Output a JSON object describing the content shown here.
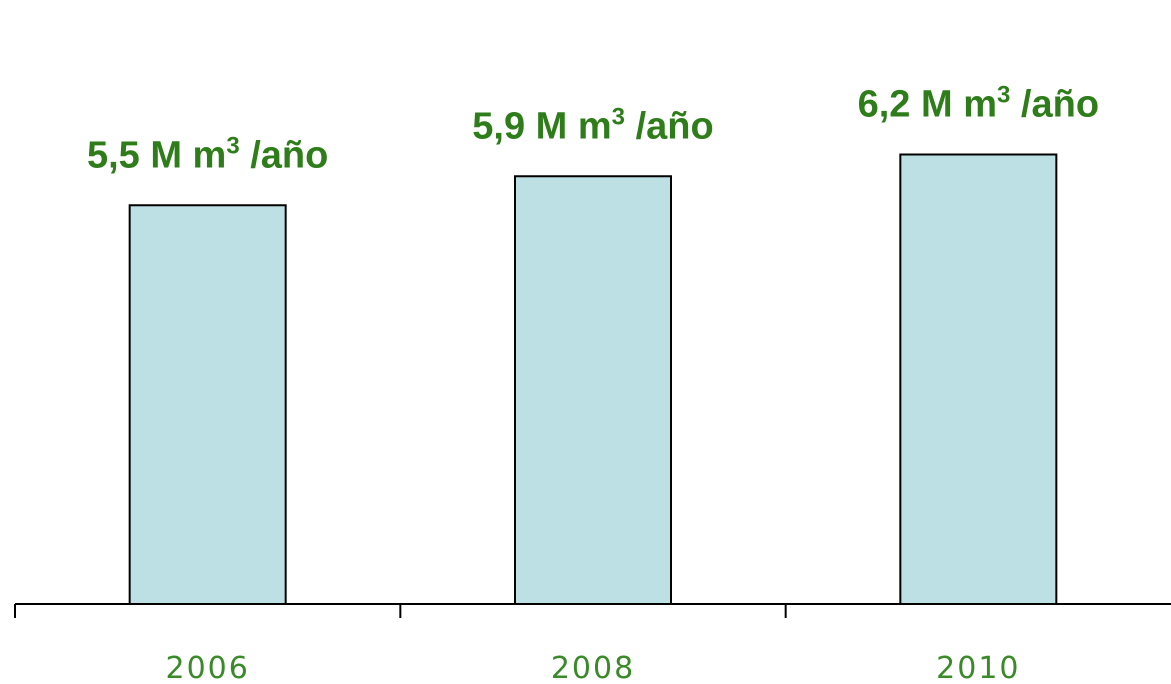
{
  "chart_data": {
    "type": "bar",
    "categories": [
      "2006",
      "2008",
      "2010"
    ],
    "values": [
      5.5,
      5.9,
      6.2
    ],
    "data_labels": [
      {
        "main": "5,5 M m",
        "sup": "3",
        "tail": " /año"
      },
      {
        "main": "5,9 M m",
        "sup": "3",
        "tail": " /año"
      },
      {
        "main": "6,2 M m",
        "sup": "3",
        "tail": " /año"
      }
    ],
    "title": "",
    "xlabel": "",
    "ylabel": "",
    "grid": false,
    "legend": "none",
    "colors": {
      "bar_fill": "#bce0e3",
      "bar_stroke": "#000000",
      "label_text": "#2e7d1a",
      "tick_text": "#3a8a2a",
      "axis": "#000000"
    }
  }
}
